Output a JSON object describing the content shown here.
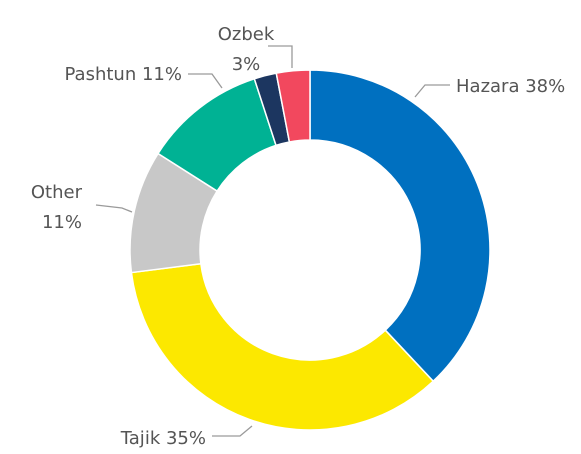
{
  "chart_data": {
    "type": "donut",
    "categories": [
      "Hazara",
      "Tajik",
      "Other",
      "Pashtun",
      null,
      "Ozbek"
    ],
    "values": [
      38,
      35,
      11,
      11,
      2,
      3
    ],
    "value_labels": [
      "38%",
      "35%",
      "11%",
      "11%",
      null,
      "3%"
    ],
    "colors": [
      "#0070c0",
      "#fce800",
      "#c8c8c8",
      "#00b294",
      "#1c3660",
      "#f2485e"
    ]
  }
}
